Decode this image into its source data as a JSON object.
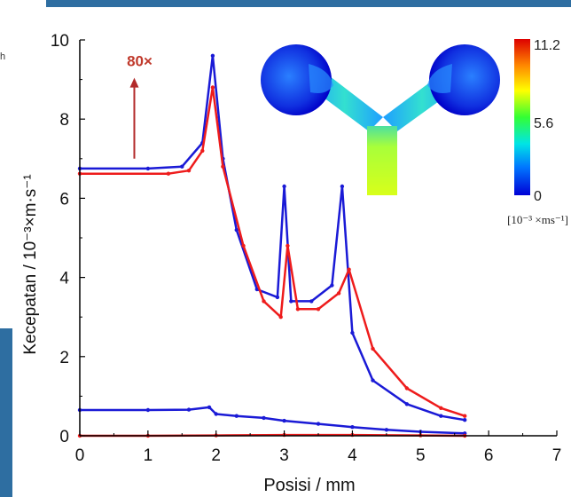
{
  "fragment_text": "h",
  "colors": {
    "frame_blue": "#2e6ea1",
    "series_blue": "#1a1ad6",
    "series_red": "#ee1c1c",
    "arrow_red": "#b22a2a"
  },
  "chart_data": {
    "type": "scatter",
    "title": "",
    "xlabel": "Posisi / mm",
    "ylabel": "Kecepatan / 10⁻³×m·s⁻¹",
    "xlim": [
      0,
      7
    ],
    "ylim": [
      0,
      10
    ],
    "xticks": [
      0,
      1,
      2,
      3,
      4,
      5,
      6,
      7
    ],
    "yticks": [
      0,
      2,
      4,
      6,
      8,
      10
    ],
    "grid": false,
    "annotation": {
      "text": "80×",
      "arrow_from": [
        0.8,
        7.0
      ],
      "arrow_to": [
        0.8,
        9.0
      ]
    },
    "series": [
      {
        "color": "blue",
        "x": [
          0.0,
          1.0,
          1.5,
          1.8,
          1.95,
          2.1,
          2.3,
          2.6,
          2.9,
          3.0,
          3.1,
          3.4,
          3.7,
          3.85,
          4.0,
          4.3,
          4.8,
          5.3,
          5.65
        ],
        "y": [
          6.75,
          6.75,
          6.8,
          7.4,
          9.6,
          7.0,
          5.2,
          3.7,
          3.5,
          6.3,
          3.4,
          3.4,
          3.8,
          6.3,
          2.6,
          1.4,
          0.8,
          0.5,
          0.4
        ]
      },
      {
        "color": "red",
        "x": [
          0.0,
          1.3,
          1.6,
          1.8,
          1.95,
          2.1,
          2.4,
          2.7,
          2.95,
          3.05,
          3.2,
          3.5,
          3.8,
          3.95,
          4.3,
          4.8,
          5.3,
          5.65
        ],
        "y": [
          6.62,
          6.62,
          6.7,
          7.2,
          8.8,
          6.8,
          4.8,
          3.4,
          3.0,
          4.8,
          3.2,
          3.2,
          3.6,
          4.2,
          2.2,
          1.2,
          0.7,
          0.5
        ]
      },
      {
        "color": "blue",
        "x": [
          0.0,
          1.0,
          1.6,
          1.9,
          2.0,
          2.3,
          2.7,
          3.0,
          3.5,
          4.0,
          4.5,
          5.0,
          5.65
        ],
        "y": [
          0.65,
          0.65,
          0.66,
          0.72,
          0.55,
          0.5,
          0.45,
          0.38,
          0.3,
          0.22,
          0.15,
          0.1,
          0.06
        ]
      },
      {
        "color": "red",
        "x": [
          0.0,
          1.0,
          2.0,
          3.0,
          4.0,
          5.0,
          5.65
        ],
        "y": [
          0.0,
          0.0,
          0.01,
          0.02,
          0.02,
          0.01,
          0.0
        ]
      }
    ],
    "inset": {
      "colorbar_ticks": [
        "11.2",
        "5.6",
        "0"
      ],
      "colorbar_unit": "[10⁻³ ×ms⁻¹]",
      "colors": [
        "#0000d6",
        "#00aaff",
        "#00e5e5",
        "#33ff33",
        "#ffff00",
        "#ff8800",
        "#dd0000"
      ]
    }
  }
}
